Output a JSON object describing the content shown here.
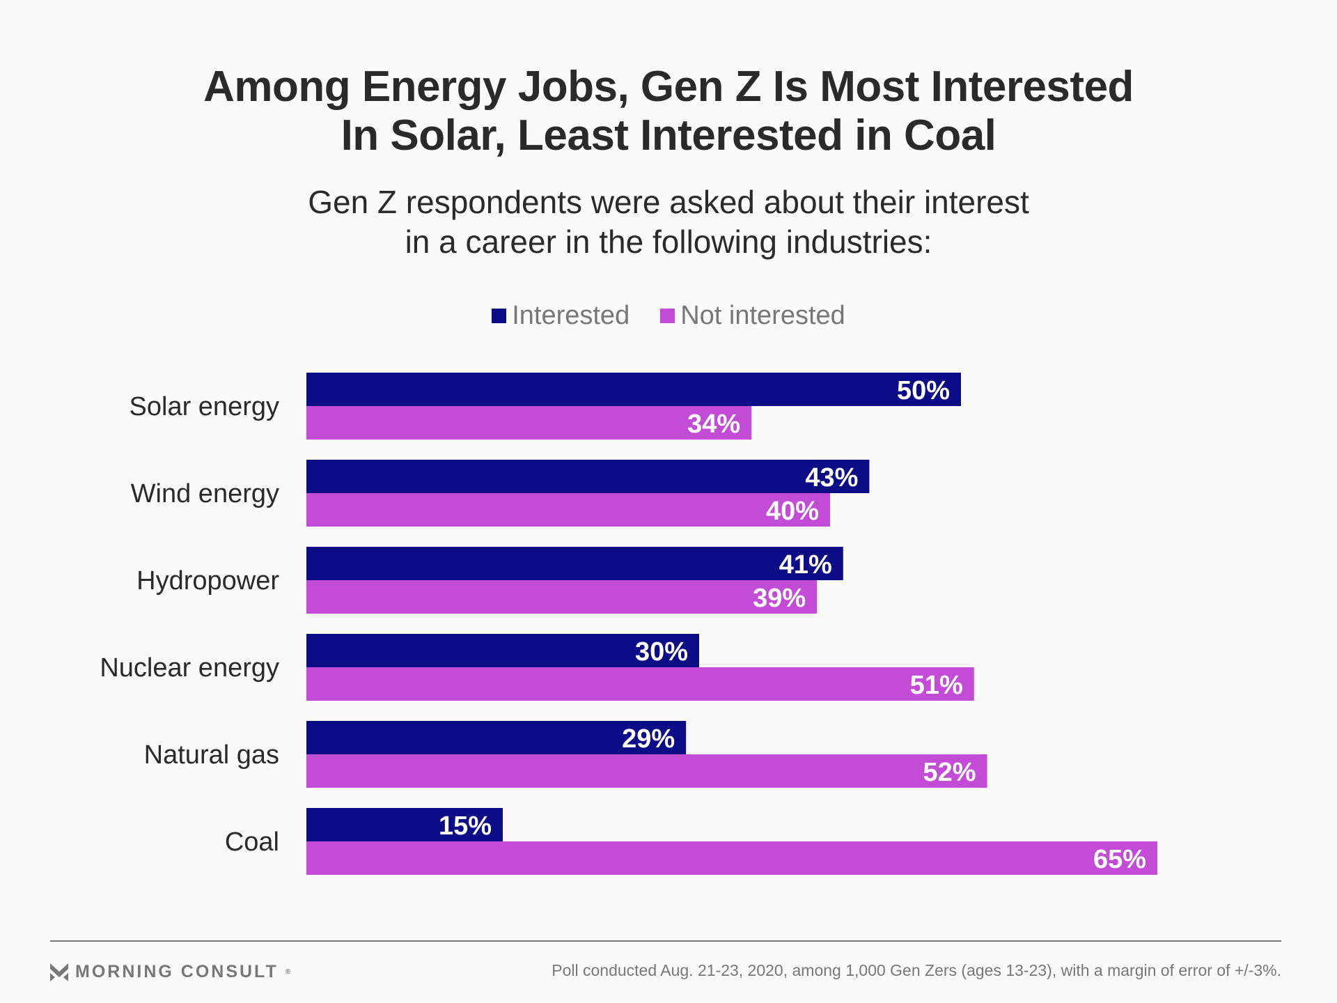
{
  "header": {
    "title_line1": "Among Energy Jobs, Gen Z Is Most Interested",
    "title_line2": "In Solar, Least Interested in Coal",
    "subtitle_line1": "Gen Z respondents were asked about their interest",
    "subtitle_line2": "in a career in the following industries:"
  },
  "legend": [
    {
      "label": "Interested",
      "color": "#0d0c87"
    },
    {
      "label": "Not interested",
      "color": "#c24cd6"
    }
  ],
  "chart_data": {
    "type": "bar",
    "orientation": "horizontal",
    "title": "Among Energy Jobs, Gen Z Is Most Interested In Solar, Least Interested in Coal",
    "subtitle": "Gen Z respondents were asked about their interest in a career in the following industries:",
    "categories": [
      "Solar energy",
      "Wind energy",
      "Hydropower",
      "Nuclear energy",
      "Natural gas",
      "Coal"
    ],
    "series": [
      {
        "name": "Interested",
        "color": "#0d0c87",
        "values": [
          50,
          43,
          41,
          30,
          29,
          15
        ]
      },
      {
        "name": "Not interested",
        "color": "#c24cd6",
        "values": [
          34,
          40,
          39,
          51,
          52,
          65
        ]
      }
    ],
    "value_suffix": "%",
    "xlim": [
      0,
      100
    ],
    "grid": false,
    "legend_position": "top-center",
    "xlabel": "",
    "ylabel": ""
  },
  "footer": {
    "brand": "MORNING CONSULT",
    "brand_mark": "®",
    "note": "Poll conducted Aug. 21-23, 2020, among 1,000 Gen Zers (ages 13-23), with a margin of error of +/-3%."
  }
}
